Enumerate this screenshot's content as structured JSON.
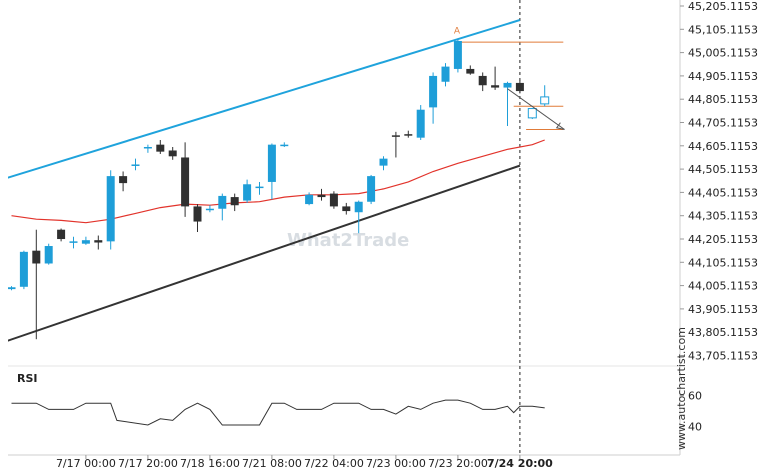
{
  "chart_data": {
    "type": "candlestick",
    "symbol": "",
    "y_ticks": [
      "45,205.1153",
      "45,105.1153",
      "45,005.1153",
      "44,905.1153",
      "44,805.1153",
      "44,705.1153",
      "44,605.1153",
      "44,505.1153",
      "44,405.1153",
      "44,305.1153",
      "44,205.1153",
      "44,105.1153",
      "44,005.1153",
      "43,905.1153",
      "43,805.1153",
      "43,705.1153"
    ],
    "ylim": [
      43705.1153,
      45205.1153
    ],
    "x_ticks": [
      {
        "label": "7/17 00:00",
        "index": 6
      },
      {
        "label": "7/17 20:00",
        "index": 11
      },
      {
        "label": "7/18 16:00",
        "index": 16
      },
      {
        "label": "7/21 08:00",
        "index": 21
      },
      {
        "label": "7/22 04:00",
        "index": 26
      },
      {
        "label": "7/23 00:00",
        "index": 31
      },
      {
        "label": "7/23 20:00",
        "index": 36
      },
      {
        "label": "7/24 20:00",
        "index": 41,
        "bold": true
      }
    ],
    "candles": [
      [
        0,
        43990,
        44003,
        43985,
        43998
      ],
      [
        1,
        44000,
        44155,
        43990,
        44150
      ],
      [
        2,
        44155,
        44245,
        43775,
        44100
      ],
      [
        3,
        44100,
        44185,
        44095,
        44175
      ],
      [
        4,
        44245,
        44250,
        44195,
        44205
      ],
      [
        5,
        44195,
        44215,
        44165,
        44195
      ],
      [
        6,
        44185,
        44215,
        44180,
        44200
      ],
      [
        7,
        44200,
        44220,
        44160,
        44190
      ],
      [
        8,
        44195,
        44500,
        44160,
        44475
      ],
      [
        9,
        44475,
        44495,
        44410,
        44445
      ],
      [
        10,
        44525,
        44550,
        44500,
        44525
      ],
      [
        11,
        44595,
        44610,
        44575,
        44600
      ],
      [
        12,
        44610,
        44630,
        44570,
        44580
      ],
      [
        13,
        44585,
        44600,
        44545,
        44560
      ],
      [
        14,
        44555,
        44620,
        44300,
        44345
      ],
      [
        15,
        44345,
        44355,
        44235,
        44280
      ],
      [
        16,
        44335,
        44350,
        44320,
        44335
      ],
      [
        17,
        44335,
        44400,
        44285,
        44390
      ],
      [
        18,
        44385,
        44400,
        44325,
        44350
      ],
      [
        19,
        44370,
        44460,
        44360,
        44440
      ],
      [
        20,
        44425,
        44450,
        44395,
        44430
      ],
      [
        21,
        44450,
        44615,
        44375,
        44610
      ],
      [
        22,
        44610,
        44620,
        44600,
        44610
      ],
      [
        23,
        null,
        null,
        null,
        null
      ],
      [
        24,
        44355,
        44405,
        44350,
        44395
      ],
      [
        25,
        44395,
        44420,
        44370,
        44385
      ],
      [
        26,
        44400,
        44410,
        44335,
        44345
      ],
      [
        27,
        44345,
        44360,
        44310,
        44325
      ],
      [
        28,
        44320,
        44370,
        44230,
        44365
      ],
      [
        29,
        44365,
        44480,
        44355,
        44475
      ],
      [
        30,
        44520,
        44560,
        44500,
        44550
      ],
      [
        31,
        44650,
        44665,
        44555,
        44645
      ],
      [
        32,
        44655,
        44670,
        44640,
        44650
      ],
      [
        33,
        44640,
        44780,
        44630,
        44760
      ],
      [
        34,
        44770,
        44920,
        44700,
        44905
      ],
      [
        35,
        44880,
        44960,
        44860,
        44945
      ],
      [
        36,
        44935,
        45065,
        44920,
        45055
      ],
      [
        37,
        44935,
        44950,
        44910,
        44915
      ],
      [
        38,
        44905,
        44920,
        44840,
        44865
      ],
      [
        39,
        44865,
        44945,
        44845,
        44855
      ],
      [
        40,
        44855,
        44880,
        44690,
        44875
      ],
      [
        41,
        44875,
        44885,
        44830,
        44840
      ],
      [
        42,
        44725,
        44765,
        44720,
        44760
      ],
      [
        43,
        44785,
        44865,
        44775,
        44815
      ]
    ],
    "ma_line": [
      [
        0,
        44305
      ],
      [
        2,
        44290
      ],
      [
        4,
        44285
      ],
      [
        6,
        44275
      ],
      [
        8,
        44290
      ],
      [
        10,
        44315
      ],
      [
        12,
        44340
      ],
      [
        14,
        44355
      ],
      [
        16,
        44350
      ],
      [
        18,
        44360
      ],
      [
        20,
        44365
      ],
      [
        22,
        44385
      ],
      [
        24,
        44395
      ],
      [
        26,
        44395
      ],
      [
        28,
        44400
      ],
      [
        30,
        44420
      ],
      [
        32,
        44450
      ],
      [
        34,
        44495
      ],
      [
        36,
        44530
      ],
      [
        38,
        44560
      ],
      [
        40,
        44590
      ],
      [
        42,
        44610
      ],
      [
        43,
        44630
      ]
    ],
    "channel_upper": [
      [
        -0.5,
        44465
      ],
      [
        41,
        45145
      ]
    ],
    "channel_lower": [
      [
        -0.5,
        43765
      ],
      [
        41,
        44520
      ]
    ],
    "resistance_level": {
      "value": 45050,
      "from": 36,
      "to": 44.5
    },
    "mid_level": {
      "value": 44775,
      "from": 40.5,
      "to": 44.5
    },
    "support_level": {
      "value": 44675,
      "from": 41.5,
      "to": 44.5
    },
    "forecast_arrow": [
      [
        40,
        44850
      ],
      [
        44.6,
        44675
      ]
    ],
    "pattern_label": {
      "text": "A",
      "index": 36,
      "value": 45105
    },
    "rsi": {
      "title": "RSI",
      "ticks": [
        60,
        40
      ],
      "ylim": [
        25,
        75
      ],
      "values": [
        [
          0,
          55
        ],
        [
          4,
          55
        ],
        [
          6,
          51
        ],
        [
          10,
          51
        ],
        [
          12,
          55
        ],
        [
          16,
          55
        ],
        [
          17,
          44
        ],
        [
          22,
          41
        ],
        [
          24,
          45
        ],
        [
          26,
          44
        ],
        [
          28,
          51
        ],
        [
          30,
          55
        ],
        [
          32,
          51
        ],
        [
          34,
          41
        ],
        [
          36,
          41
        ],
        [
          38,
          41
        ],
        [
          40,
          41
        ],
        [
          41,
          55
        ],
        [
          43,
          55
        ],
        [
          45,
          51
        ],
        [
          47,
          51
        ],
        [
          49,
          51
        ],
        [
          52,
          55
        ],
        [
          56,
          55
        ],
        [
          58,
          51
        ],
        [
          60,
          51
        ],
        [
          62,
          48
        ],
        [
          64,
          53
        ],
        [
          66,
          51
        ]
      ],
      "values_mapped": [
        [
          0,
          55
        ],
        [
          2,
          55
        ],
        [
          3,
          51
        ],
        [
          5,
          51
        ],
        [
          6,
          55
        ],
        [
          8,
          55
        ],
        [
          8.5,
          44
        ],
        [
          11,
          41
        ],
        [
          12,
          45
        ],
        [
          13,
          44
        ],
        [
          14,
          51
        ],
        [
          15,
          55
        ],
        [
          16,
          51
        ],
        [
          17,
          41
        ],
        [
          18,
          41
        ],
        [
          19,
          41
        ],
        [
          20,
          41
        ],
        [
          21,
          55
        ],
        [
          22,
          55
        ],
        [
          23,
          51
        ],
        [
          24,
          51
        ],
        [
          25,
          51
        ],
        [
          26,
          55
        ],
        [
          28,
          55
        ],
        [
          29,
          51
        ],
        [
          30,
          51
        ],
        [
          31,
          48
        ],
        [
          32,
          53
        ],
        [
          33,
          51
        ],
        [
          34,
          55
        ],
        [
          35,
          57
        ],
        [
          36,
          57
        ],
        [
          37,
          55
        ],
        [
          38,
          51
        ],
        [
          39,
          51
        ],
        [
          40,
          53
        ],
        [
          40.5,
          49
        ],
        [
          41,
          53
        ],
        [
          42,
          53
        ],
        [
          43,
          52
        ]
      ]
    },
    "watermark": "What2Trade",
    "credit": "www.autochartist.com",
    "colors": {
      "bull": "#1e9ed8",
      "bear": "#303030",
      "upper_channel": "#1fa3dc",
      "lower_channel": "#333333",
      "ma": "#e2332b",
      "levels": "#e07b39",
      "arrow": "#555555",
      "vline": "#222222",
      "rsi": "#333333"
    }
  }
}
